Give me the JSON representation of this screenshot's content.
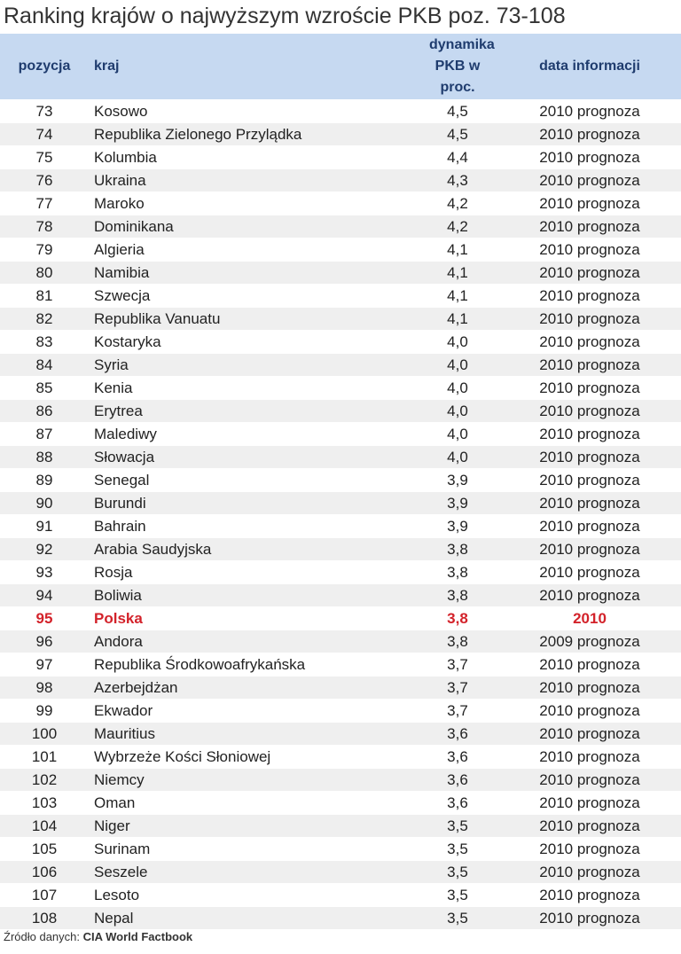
{
  "title": "Ranking krajów o najwyższym wzroście PKB poz. 73-108",
  "table": {
    "header": [
      "pozycja",
      "kraj",
      "dynamika PKB w proc.",
      "data informacji"
    ],
    "highlight": {
      "row": 22,
      "color": "#d3222a"
    },
    "rows": [
      [
        "73",
        "Kosowo",
        "4,5",
        "2010 prognoza"
      ],
      [
        "74",
        "Republika Zielonego Przylądka",
        "4,5",
        "2010 prognoza"
      ],
      [
        "75",
        "Kolumbia",
        "4,4",
        "2010 prognoza"
      ],
      [
        "76",
        "Ukraina",
        "4,3",
        "2010 prognoza"
      ],
      [
        "77",
        "Maroko",
        "4,2",
        "2010 prognoza"
      ],
      [
        "78",
        "Dominikana",
        "4,2",
        "2010 prognoza"
      ],
      [
        "79",
        "Algieria",
        "4,1",
        "2010 prognoza"
      ],
      [
        "80",
        "Namibia",
        "4,1",
        "2010 prognoza"
      ],
      [
        "81",
        "Szwecja",
        "4,1",
        "2010 prognoza"
      ],
      [
        "82",
        "Republika Vanuatu",
        "4,1",
        "2010 prognoza"
      ],
      [
        "83",
        "Kostaryka",
        "4,0",
        "2010 prognoza"
      ],
      [
        "84",
        "Syria",
        "4,0",
        "2010 prognoza"
      ],
      [
        "85",
        "Kenia",
        "4,0",
        "2010 prognoza"
      ],
      [
        "86",
        "Erytrea",
        "4,0",
        "2010 prognoza"
      ],
      [
        "87",
        "Malediwy",
        "4,0",
        "2010 prognoza"
      ],
      [
        "88",
        "Słowacja",
        "4,0",
        "2010 prognoza"
      ],
      [
        "89",
        "Senegal",
        "3,9",
        "2010 prognoza"
      ],
      [
        "90",
        "Burundi",
        "3,9",
        "2010 prognoza"
      ],
      [
        "91",
        "Bahrain",
        "3,9",
        "2010 prognoza"
      ],
      [
        "92",
        "Arabia Saudyjska",
        "3,8",
        "2010 prognoza"
      ],
      [
        "93",
        "Rosja",
        "3,8",
        "2010 prognoza"
      ],
      [
        "94",
        "Boliwia",
        "3,8",
        "2010 prognoza"
      ],
      [
        "95",
        "Polska",
        "3,8",
        "2010"
      ],
      [
        "96",
        "Andora",
        "3,8",
        "2009 prognoza"
      ],
      [
        "97",
        "Republika Środkowoafrykańska",
        "3,7",
        "2010 prognoza"
      ],
      [
        "98",
        "Azerbejdżan",
        "3,7",
        "2010 prognoza"
      ],
      [
        "99",
        "Ekwador",
        "3,7",
        "2010 prognoza"
      ],
      [
        "100",
        "Mauritius",
        "3,6",
        "2010 prognoza"
      ],
      [
        "101",
        "Wybrzeże Kości Słoniowej",
        "3,6",
        "2010 prognoza"
      ],
      [
        "102",
        "Niemcy",
        "3,6",
        "2010 prognoza"
      ],
      [
        "103",
        "Oman",
        "3,6",
        "2010 prognoza"
      ],
      [
        "104",
        "Niger",
        "3,5",
        "2010 prognoza"
      ],
      [
        "105",
        "Surinam",
        "3,5",
        "2010 prognoza"
      ],
      [
        "106",
        "Seszele",
        "3,5",
        "2010 prognoza"
      ],
      [
        "107",
        "Lesoto",
        "3,5",
        "2010 prognoza"
      ],
      [
        "108",
        "Nepal",
        "3,5",
        "2010 prognoza"
      ]
    ]
  },
  "source": {
    "label": "Źródło danych:",
    "value": "CIA World Factbook"
  }
}
